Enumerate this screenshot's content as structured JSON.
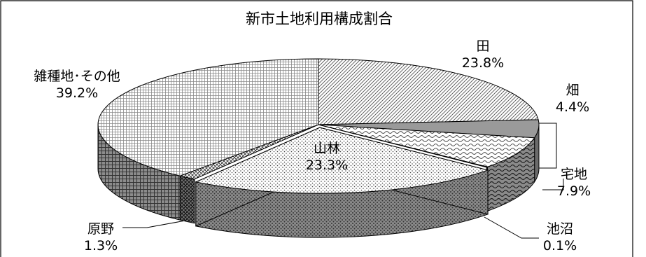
{
  "chart_data": {
    "type": "pie",
    "style": "3d-exploded",
    "title": "新市土地利用構成割合",
    "value_unit": "%",
    "slices": [
      {
        "name": "田",
        "value": 23.8,
        "label": "23.8%",
        "pattern": "diag-lines"
      },
      {
        "name": "畑",
        "value": 4.4,
        "label": "4.4%",
        "pattern": "solid-gray"
      },
      {
        "name": "宅地",
        "value": 7.9,
        "label": "7.9%",
        "pattern": "wave"
      },
      {
        "name": "池沼",
        "value": 0.1,
        "label": "0.1%",
        "pattern": "dark-solid"
      },
      {
        "name": "山林",
        "value": 23.3,
        "label": "23.3%",
        "pattern": "dots"
      },
      {
        "name": "原野",
        "value": 1.3,
        "label": "1.3%",
        "pattern": "crosshatch"
      },
      {
        "name": "雑種地･その他",
        "value": 39.2,
        "label": "39.2%",
        "pattern": "grid"
      }
    ],
    "legend": "none"
  },
  "colors": {
    "background": "#ffffff",
    "outline": "#000000",
    "side_dark": "#777777",
    "side_mid": "#9a9a9a"
  }
}
